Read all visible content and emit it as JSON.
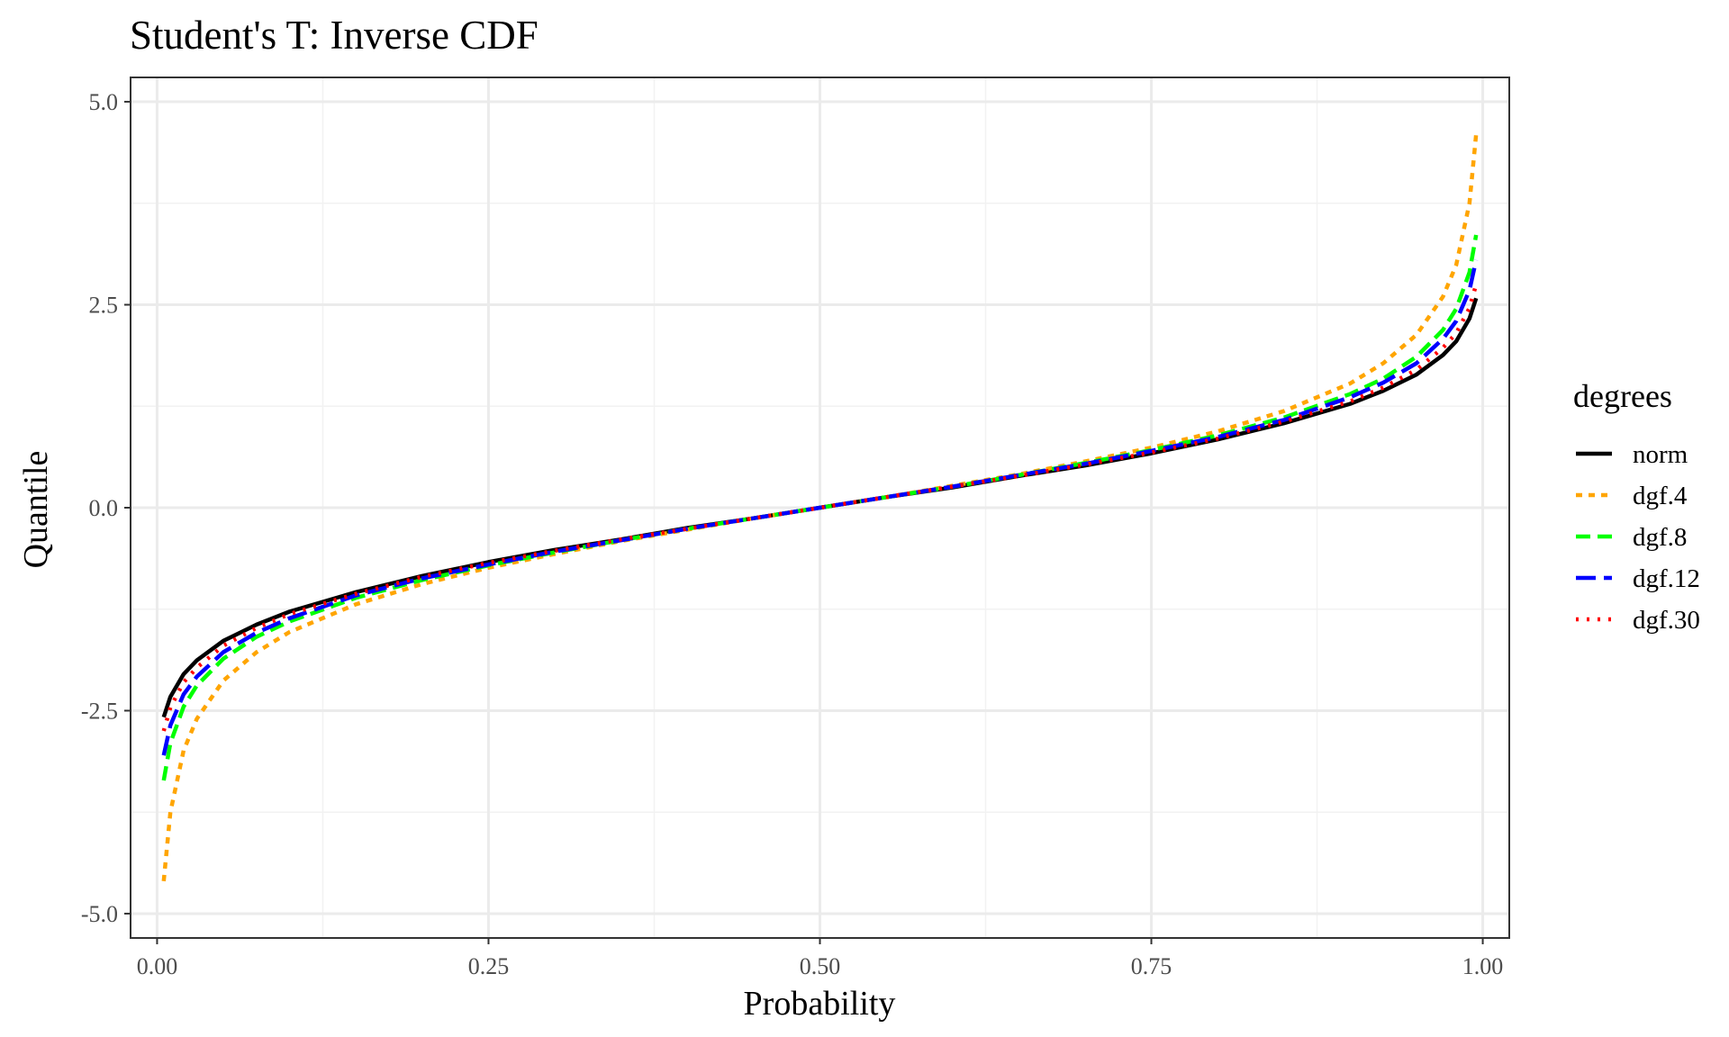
{
  "chart_data": {
    "type": "line",
    "title": "Student's T: Inverse CDF",
    "xlabel": "Probability",
    "ylabel": "Quantile",
    "xlim": [
      -0.02,
      1.02
    ],
    "ylim": [
      -5.3,
      5.3
    ],
    "x_ticks": [
      0,
      0.25,
      0.5,
      0.75,
      1
    ],
    "x_tick_labels": [
      "0.00",
      "0.25",
      "0.50",
      "0.75",
      "1.00"
    ],
    "y_ticks": [
      -5,
      -2.5,
      0,
      2.5,
      5
    ],
    "y_tick_labels": [
      "-5.0",
      "-2.5",
      "0.0",
      "2.5",
      "5.0"
    ],
    "grid": true,
    "legend_title": "degrees",
    "legend_position": "right",
    "x": [
      0.005,
      0.01,
      0.02,
      0.03,
      0.05,
      0.075,
      0.1,
      0.15,
      0.2,
      0.25,
      0.3,
      0.35,
      0.4,
      0.45,
      0.5,
      0.55,
      0.6,
      0.65,
      0.7,
      0.75,
      0.8,
      0.85,
      0.9,
      0.925,
      0.95,
      0.97,
      0.98,
      0.99,
      0.995
    ],
    "series": [
      {
        "name": "norm",
        "color": "#000000",
        "dash": "solid",
        "values": [
          -2.58,
          -2.33,
          -2.05,
          -1.88,
          -1.64,
          -1.44,
          -1.28,
          -1.04,
          -0.84,
          -0.67,
          -0.52,
          -0.39,
          -0.25,
          -0.13,
          0,
          0.13,
          0.25,
          0.39,
          0.52,
          0.67,
          0.84,
          1.04,
          1.28,
          1.44,
          1.64,
          1.88,
          2.05,
          2.33,
          2.58
        ]
      },
      {
        "name": "dgf.4",
        "color": "#FFA500",
        "dash": "7 7",
        "values": [
          -4.6,
          -3.75,
          -2.99,
          -2.6,
          -2.13,
          -1.78,
          -1.53,
          -1.19,
          -0.94,
          -0.74,
          -0.57,
          -0.41,
          -0.27,
          -0.13,
          0,
          0.13,
          0.27,
          0.41,
          0.57,
          0.74,
          0.94,
          1.19,
          1.53,
          1.78,
          2.13,
          2.6,
          2.99,
          3.75,
          4.6
        ]
      },
      {
        "name": "dgf.8",
        "color": "#00FF00",
        "dash": "16 8",
        "values": [
          -3.36,
          -2.9,
          -2.45,
          -2.19,
          -1.86,
          -1.59,
          -1.4,
          -1.11,
          -0.89,
          -0.71,
          -0.55,
          -0.4,
          -0.26,
          -0.13,
          0,
          0.13,
          0.26,
          0.4,
          0.55,
          0.71,
          0.89,
          1.11,
          1.4,
          1.59,
          1.86,
          2.19,
          2.45,
          2.9,
          3.36
        ]
      },
      {
        "name": "dgf.12",
        "color": "#0000FF",
        "dash": "22 9",
        "values": [
          -3.05,
          -2.68,
          -2.3,
          -2.08,
          -1.78,
          -1.54,
          -1.36,
          -1.08,
          -0.87,
          -0.7,
          -0.54,
          -0.4,
          -0.26,
          -0.13,
          0,
          0.13,
          0.26,
          0.4,
          0.54,
          0.7,
          0.87,
          1.08,
          1.36,
          1.54,
          1.78,
          2.08,
          2.3,
          2.68,
          3.05
        ]
      },
      {
        "name": "dgf.30",
        "color": "#FF0000",
        "dash": "3 9",
        "values": [
          -2.75,
          -2.46,
          -2.15,
          -1.97,
          -1.7,
          -1.48,
          -1.31,
          -1.06,
          -0.85,
          -0.68,
          -0.53,
          -0.39,
          -0.26,
          -0.13,
          0,
          0.13,
          0.26,
          0.39,
          0.53,
          0.68,
          0.85,
          1.06,
          1.31,
          1.48,
          1.7,
          1.97,
          2.15,
          2.46,
          2.75
        ]
      }
    ]
  }
}
